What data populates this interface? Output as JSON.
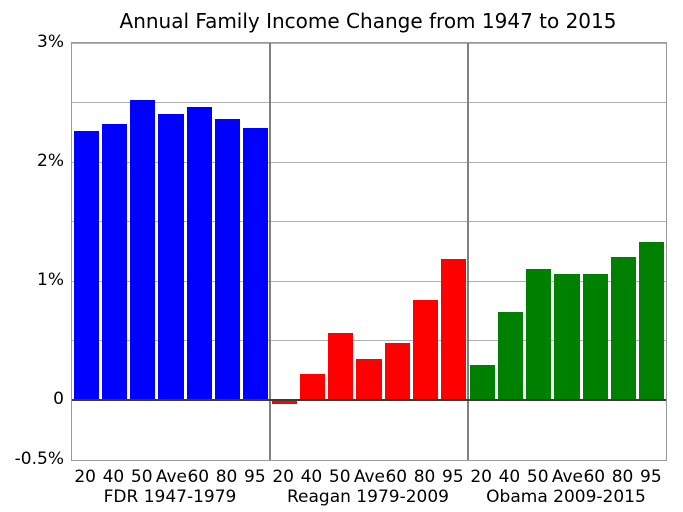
{
  "chart_data": {
    "type": "bar",
    "title": "Annual Family Income Change from 1947 to 2015",
    "xlabel": "",
    "ylabel": "",
    "ylim": [
      -0.5,
      3
    ],
    "grid": true,
    "grid_step": 0.5,
    "legend_position": "none",
    "value_unit": "%",
    "categories": [
      "20",
      "40",
      "50",
      "Ave",
      "60",
      "80",
      "95"
    ],
    "yticks": [
      {
        "value": 3,
        "label": "3%"
      },
      {
        "value": 2,
        "label": "2%"
      },
      {
        "value": 1,
        "label": "1%"
      },
      {
        "value": 0,
        "label": "0"
      },
      {
        "value": -0.5,
        "label": "-0.5%"
      }
    ],
    "series": [
      {
        "name": "FDR 1947-1979",
        "color": "#0000ff",
        "values": [
          2.26,
          2.32,
          2.52,
          2.4,
          2.46,
          2.36,
          2.29
        ]
      },
      {
        "name": "Reagan 1979-2009",
        "color": "#ff0000",
        "values": [
          -0.03,
          0.22,
          0.57,
          0.35,
          0.48,
          0.84,
          1.19
        ]
      },
      {
        "name": "Obama 2009-2015",
        "color": "#008000",
        "values": [
          0.3,
          0.74,
          1.1,
          1.06,
          1.06,
          1.2,
          1.33
        ]
      }
    ]
  }
}
